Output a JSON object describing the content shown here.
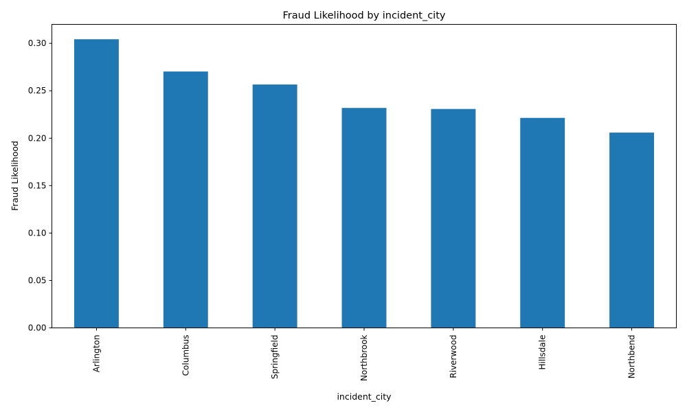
{
  "chart_data": {
    "type": "bar",
    "title": "Fraud Likelihood by incident_city",
    "xlabel": "incident_city",
    "ylabel": "Fraud Likelihood",
    "categories": [
      "Arlington",
      "Columbus",
      "Springfield",
      "Northbrook",
      "Riverwood",
      "Hillsdale",
      "Northbend"
    ],
    "values": [
      0.3043,
      0.2703,
      0.2566,
      0.2319,
      0.2308,
      0.2214,
      0.2059
    ],
    "ylim": [
      0,
      0.32
    ],
    "yticks": [
      "0.00",
      "0.05",
      "0.10",
      "0.15",
      "0.20",
      "0.25",
      "0.30"
    ],
    "grid": false,
    "legend": "none",
    "bar_color": "#1f77b4"
  }
}
